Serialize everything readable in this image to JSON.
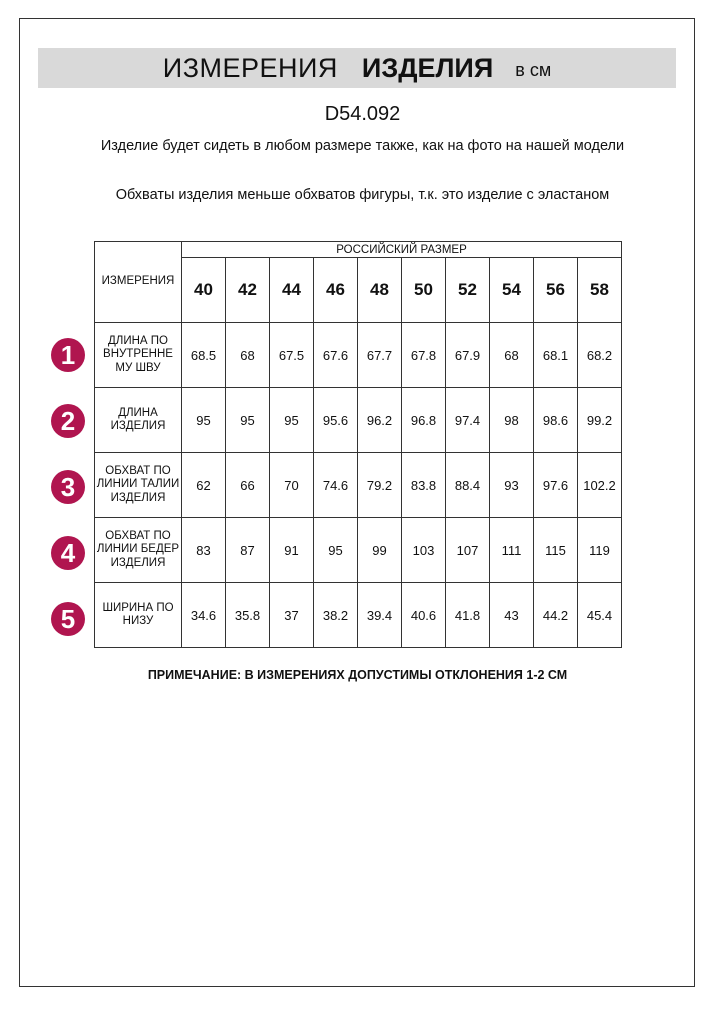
{
  "title": {
    "part1": "ИЗМЕРЕНИЯ",
    "part2": "ИЗДЕЛИЯ",
    "unit": "в см"
  },
  "article": "D54.092",
  "notes": [
    "Изделие будет сидеть в любом размере также, как на фото на нашей модели",
    "Обхваты изделия меньше обхватов фигуры, т.к. это изделие с эластаном"
  ],
  "table": {
    "corner_label": "ИЗМЕРЕНИЯ",
    "group_header": "РОССИЙСКИЙ РАЗМЕР",
    "sizes": [
      "40",
      "42",
      "44",
      "46",
      "48",
      "50",
      "52",
      "54",
      "56",
      "58"
    ],
    "rows": [
      {
        "badge": "1",
        "label": "ДЛИНА ПО ВНУТРЕННЕ МУ ШВУ",
        "values": [
          "68.5",
          "68",
          "67.5",
          "67.6",
          "67.7",
          "67.8",
          "67.9",
          "68",
          "68.1",
          "68.2"
        ]
      },
      {
        "badge": "2",
        "label": "ДЛИНА ИЗДЕЛИЯ",
        "values": [
          "95",
          "95",
          "95",
          "95.6",
          "96.2",
          "96.8",
          "97.4",
          "98",
          "98.6",
          "99.2"
        ]
      },
      {
        "badge": "3",
        "label": "ОБХВАТ ПО ЛИНИИ ТАЛИИ ИЗДЕЛИЯ",
        "values": [
          "62",
          "66",
          "70",
          "74.6",
          "79.2",
          "83.8",
          "88.4",
          "93",
          "97.6",
          "102.2"
        ]
      },
      {
        "badge": "4",
        "label": "ОБХВАТ ПО ЛИНИИ БЕДЕР ИЗДЕЛИЯ",
        "values": [
          "83",
          "87",
          "91",
          "95",
          "99",
          "103",
          "107",
          "111",
          "115",
          "119"
        ]
      },
      {
        "badge": "5",
        "label": "ШИРИНА ПО НИЗУ",
        "values": [
          "34.6",
          "35.8",
          "37",
          "38.2",
          "39.4",
          "40.6",
          "41.8",
          "43",
          "44.2",
          "45.4"
        ]
      }
    ]
  },
  "footnote": "ПРИМЕЧАНИЕ: В ИЗМЕРЕНИЯХ ДОПУСТИМЫ ОТКЛОНЕНИЯ 1-2 СМ",
  "colors": {
    "badge": "#b0154f",
    "title_bar": "#d9d9d9"
  }
}
